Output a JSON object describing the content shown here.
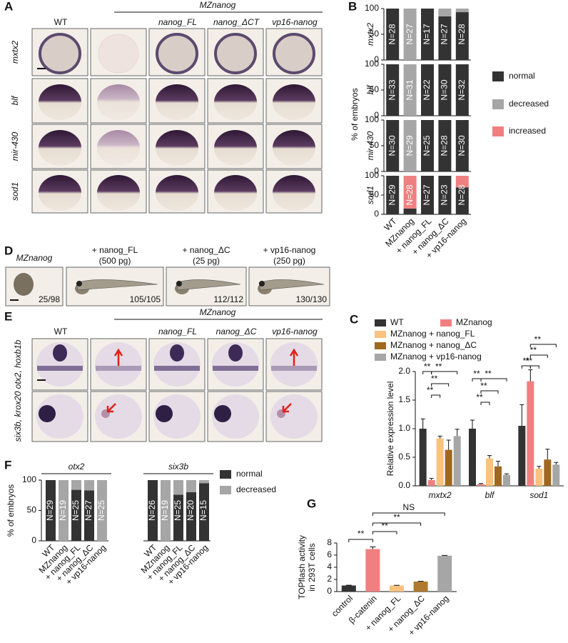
{
  "panel_labels": [
    "A",
    "B",
    "C",
    "D",
    "E",
    "F",
    "G"
  ],
  "panel_a": {
    "group_label": "MZnanog",
    "columns": [
      "WT",
      null,
      "nanog_FL",
      "nanog_ΔCT",
      "vp16-nanog"
    ],
    "rows": [
      "mxtx2",
      "blf",
      "mir-430",
      "sod1"
    ]
  },
  "panel_d": {
    "images": [
      {
        "label": "MZnanog",
        "count": "25/98"
      },
      {
        "label": "+ nanog_FL",
        "dose": "(500 pg)",
        "count": "105/105"
      },
      {
        "label": "+ nanog_ΔC",
        "dose": "(25 pg)",
        "count": "112/112"
      },
      {
        "label": "+ vp16-nanog",
        "dose": "(250 pg)",
        "count": "130/130"
      }
    ]
  },
  "panel_e": {
    "group_label": "MZnanog",
    "columns": [
      "WT",
      null,
      "nanog_FL",
      "nanog_ΔC",
      "vp16-nanog"
    ],
    "rows": [
      "otx2, hoxb1b",
      "six3b, krox20"
    ]
  },
  "chart_data": [
    {
      "type": "stacked-bar-grid",
      "ylabel": "% of embryos",
      "categories": [
        "WT",
        "MZnanog",
        "+ nanog_FL",
        "+ nanog_ΔC",
        "+ vp16-nanog"
      ],
      "legend": [
        {
          "name": "normal",
          "color": "#333333"
        },
        {
          "name": "decreased",
          "color": "#a6a6a6"
        },
        {
          "name": "increased",
          "color": "#f08080"
        }
      ],
      "ylim": [
        0,
        100
      ],
      "yticks": [
        0,
        50,
        100
      ],
      "panels": [
        {
          "title": "mxtx2",
          "values": [
            [
              100,
              0,
              100,
              85,
              93
            ],
            [
              0,
              100,
              0,
              15,
              7
            ],
            [
              0,
              0,
              0,
              0,
              0
            ]
          ],
          "n_labels": [
            "N=28",
            "N=27",
            "N=17",
            "N=27",
            "N=28"
          ]
        },
        {
          "title": "blf",
          "values": [
            [
              100,
              0,
              100,
              100,
              100
            ],
            [
              0,
              100,
              0,
              0,
              0
            ],
            [
              0,
              0,
              0,
              0,
              0
            ]
          ],
          "n_labels": [
            "N=33",
            "N=31",
            "N=22",
            "N=30",
            "N=32"
          ]
        },
        {
          "title": "mir-430",
          "values": [
            [
              100,
              0,
              100,
              100,
              100
            ],
            [
              0,
              100,
              0,
              0,
              0
            ],
            [
              0,
              0,
              0,
              0,
              0
            ]
          ],
          "n_labels": [
            "N=30",
            "N=29",
            "N=25",
            "N=28",
            "N=30"
          ]
        },
        {
          "title": "sod1",
          "values": [
            [
              100,
              15,
              100,
              100,
              70
            ],
            [
              0,
              0,
              0,
              0,
              0
            ],
            [
              0,
              85,
              0,
              0,
              30
            ]
          ],
          "n_labels": [
            "N=29",
            "N=28",
            "N=27",
            "N=23",
            "N=28"
          ]
        }
      ]
    },
    {
      "type": "grouped-bar",
      "ylabel": "Relative expression level",
      "categories": [
        "mxtx2",
        "blf",
        "sod1"
      ],
      "series": [
        {
          "name": "WT",
          "color": "#333333",
          "values": [
            1.0,
            1.0,
            1.05
          ],
          "errors": [
            0.17,
            0.15,
            0.37
          ]
        },
        {
          "name": "MZnanog",
          "color": "#f08080",
          "values": [
            0.1,
            0.03,
            1.83
          ],
          "errors": [
            0.03,
            0.01,
            0.2
          ]
        },
        {
          "name": "MZnanog + nanog_FL",
          "color": "#f9c27e",
          "values": [
            0.83,
            0.48,
            0.3
          ],
          "errors": [
            0.04,
            0.05,
            0.04
          ]
        },
        {
          "name": "MZnanog + nanog_ΔC",
          "color": "#a0681e",
          "values": [
            0.63,
            0.34,
            0.46
          ],
          "errors": [
            0.17,
            0.09,
            0.18
          ]
        },
        {
          "name": "MZnanog + vp16-nanog",
          "color": "#a6a6a6",
          "values": [
            0.87,
            0.19,
            0.37
          ],
          "errors": [
            0.12,
            0.02,
            0.04
          ]
        }
      ],
      "ylim": [
        0,
        2
      ],
      "yticks": [
        {
          "value": 0,
          "label": "0.0"
        },
        0.5,
        {
          "value": 1,
          "label": "1.0"
        },
        1.5,
        {
          "value": 2,
          "label": "2.0"
        }
      ],
      "significance": [
        "**",
        "**",
        "**",
        "**",
        "**",
        "**",
        "**",
        "**",
        "**",
        "**",
        "**",
        "**"
      ]
    },
    {
      "type": "stacked-bar-groups",
      "ylabel": "% of embryos",
      "legend": [
        {
          "name": "normal",
          "color": "#333333"
        },
        {
          "name": "decreased",
          "color": "#a6a6a6"
        }
      ],
      "ylim": [
        0,
        100
      ],
      "yticks": [
        0,
        50,
        100
      ],
      "groups": [
        {
          "title": "otx2",
          "categories": [
            "WT",
            "MZnanog",
            "+ nanog_FL",
            "+ nanog_ΔC",
            "+ vp16-nanog"
          ],
          "values": [
            [
              100,
              0,
              84,
              83,
              0
            ],
            [
              0,
              100,
              16,
              17,
              100
            ]
          ],
          "n_labels": [
            "N=29",
            "N=19",
            "N=25",
            "N=27",
            "N=25"
          ]
        },
        {
          "title": "six3b",
          "categories": [
            "WT",
            "MZnanog",
            "+ nanog_FL",
            "+ nanog_ΔC",
            "+ vp16-nanog"
          ],
          "values": [
            [
              100,
              0,
              76,
              80,
              95
            ],
            [
              0,
              100,
              24,
              20,
              5
            ]
          ],
          "n_labels": [
            "N=26",
            "N=19",
            "N=25",
            "N=20",
            "N=15"
          ]
        }
      ]
    },
    {
      "type": "bar",
      "ylabel": [
        "TOPflash activity",
        "in 293T cells"
      ],
      "categories": [
        "control",
        "β-catenin",
        "+ nanog_FL",
        "+ nanog_ΔC",
        "+ vp16-nanog"
      ],
      "values": [
        1.0,
        7.0,
        1.0,
        1.65,
        5.9
      ],
      "errors": [
        0.05,
        0.35,
        0.03,
        0.04,
        0.05
      ],
      "colors": [
        "#333333",
        "#f08080",
        "#f9c27e",
        "#b07a30",
        "#a6a6a6"
      ],
      "ylim": [
        0,
        8
      ],
      "yticks": [
        0,
        2,
        4,
        6,
        8
      ],
      "significance": [
        "**",
        "**",
        "**",
        "NS"
      ]
    }
  ]
}
